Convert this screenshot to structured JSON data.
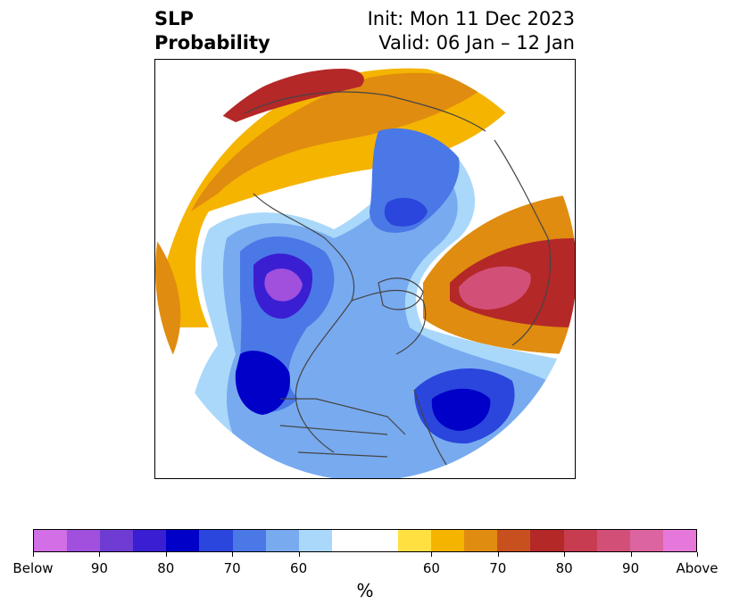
{
  "header": {
    "title_line1": "SLP",
    "title_line2": "Probability",
    "init": "Init: Mon 11 Dec 2023",
    "valid": "Valid: 06 Jan – 12 Jan"
  },
  "colorbar": {
    "unit_label": "%",
    "below_colors": [
      "#d26ee6",
      "#a050dc",
      "#6e3cd2",
      "#3a1ed2",
      "#0000c8",
      "#2a46dc",
      "#4a78e6",
      "#78aaf0",
      "#aad8fa"
    ],
    "neutral_color": "#ffffff",
    "above_colors": [
      "#ffe040",
      "#f5b400",
      "#e08c10",
      "#c8501e",
      "#b42828",
      "#c83c50",
      "#d25078",
      "#dc64a0",
      "#e678dc"
    ],
    "tick_labels": [
      "Below",
      "90",
      "80",
      "70",
      "60",
      "60",
      "70",
      "80",
      "90",
      "Above"
    ]
  }
}
